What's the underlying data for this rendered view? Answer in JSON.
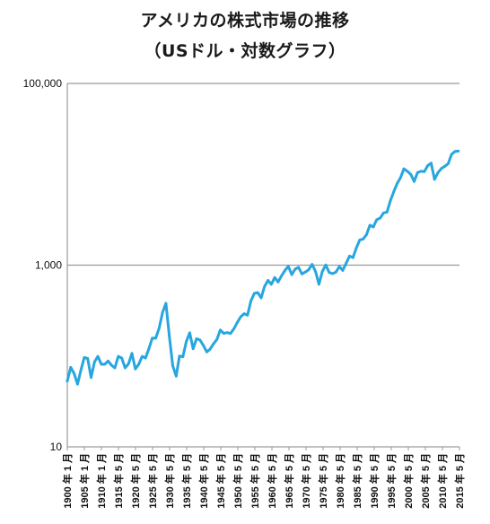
{
  "title_line1": "アメリカの株式市場の推移",
  "title_line2": "（USドル・対数グラフ）",
  "chart_data": {
    "type": "line",
    "title": "アメリカの株式市場の推移（USドル・対数グラフ）",
    "xlabel": "",
    "ylabel": "",
    "y_scale": "log",
    "ylim": [
      10,
      100000
    ],
    "y_ticks": [
      10,
      1000,
      100000
    ],
    "y_tick_labels": [
      "10",
      "1,000",
      "100,000"
    ],
    "x_range": [
      "1900-01",
      "2015-05"
    ],
    "x_tick_labels": [
      "1900 年 1 月",
      "1905 年 1 月",
      "1910 年 1 月",
      "1915 年 5 月",
      "1920 年 5 月",
      "1925 年 5 月",
      "1930 年 5 月",
      "1935 年 5 月",
      "1940 年 5 月",
      "1945 年 5 月",
      "1950 年 5 月",
      "1955 年 5 月",
      "1960 年 5 月",
      "1965 年 5 月",
      "1970 年 5 月",
      "1975 年 5 月",
      "1980 年 5 月",
      "1985 年 5 月",
      "1990 年 5 月",
      "1995 年 5 月",
      "2000 年 5 月",
      "2005 年 5 月",
      "2010 年 5 月",
      "2015 年 5 月"
    ],
    "grid": "horizontal",
    "line_color": "#27a6df",
    "series": [
      {
        "x": [
          1900,
          1901,
          1902,
          1903,
          1904,
          1905,
          1906,
          1907,
          1908,
          1909,
          1910,
          1911,
          1912,
          1913,
          1914,
          1915,
          1916,
          1917,
          1918,
          1919,
          1920,
          1921,
          1922,
          1923,
          1924,
          1925,
          1926,
          1927,
          1928,
          1929,
          1930,
          1931,
          1932,
          1933,
          1934,
          1935,
          1936,
          1937,
          1938,
          1939,
          1940,
          1941,
          1942,
          1943,
          1944,
          1945,
          1946,
          1947,
          1948,
          1949,
          1950,
          1951,
          1952,
          1953,
          1954,
          1955,
          1956,
          1957,
          1958,
          1959,
          1960,
          1961,
          1962,
          1963,
          1964,
          1965,
          1966,
          1967,
          1968,
          1969,
          1970,
          1971,
          1972,
          1973,
          1974,
          1975,
          1976,
          1977,
          1978,
          1979,
          1980,
          1981,
          1982,
          1983,
          1984,
          1985,
          1986,
          1987,
          1988,
          1989,
          1990,
          1991,
          1992,
          1993,
          1994,
          1995,
          1996,
          1997,
          1998,
          1999,
          2000,
          2001,
          2002,
          2003,
          2004,
          2005,
          2006,
          2007,
          2008,
          2009,
          2010,
          2011,
          2012,
          2013,
          2014,
          2015
        ],
        "y": [
          53,
          75,
          64,
          49,
          70,
          96,
          94,
          58,
          86,
          99,
          81,
          81,
          88,
          79,
          74,
          99,
          95,
          74,
          82,
          107,
          72,
          81,
          99,
          95,
          120,
          157,
          157,
          202,
          300,
          380,
          165,
          78,
          60,
          100,
          98,
          144,
          180,
          120,
          155,
          150,
          131,
          111,
          119,
          136,
          152,
          193,
          177,
          181,
          177,
          200,
          235,
          270,
          292,
          281,
          404,
          488,
          499,
          436,
          583,
          679,
          615,
          731,
          652,
          763,
          874,
          969,
          786,
          905,
          944,
          800,
          839,
          890,
          1020,
          850,
          616,
          852,
          1004,
          831,
          805,
          838,
          964,
          875,
          1046,
          1258,
          1211,
          1546,
          1896,
          1939,
          2168,
          2753,
          2633,
          3168,
          3301,
          3754,
          3834,
          5117,
          6448,
          7908,
          9181,
          11497,
          10787,
          10021,
          8341,
          10453,
          10783,
          10717,
          12463,
          13264,
          8776,
          10428,
          11577,
          12217,
          13104,
          16576,
          17823,
          18010
        ]
      }
    ]
  }
}
